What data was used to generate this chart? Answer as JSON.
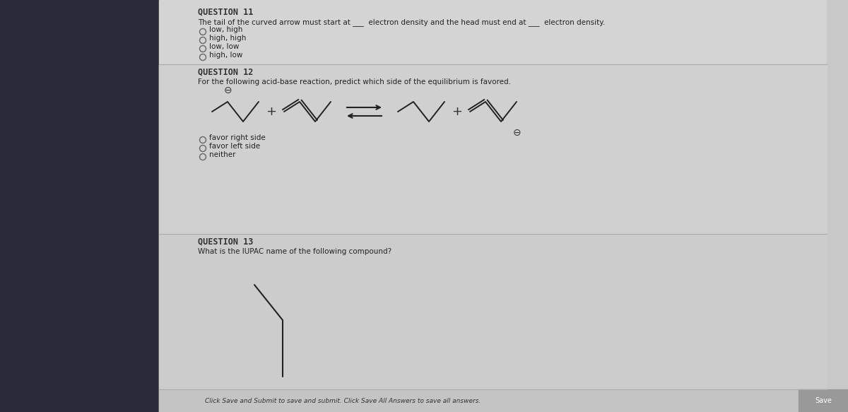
{
  "bg_color": "#e0e0e0",
  "left_panel_color": "#2a2a3a",
  "main_bg": "#d4d4d4",
  "q11_title": "QUESTION 11",
  "q11_text": "The tail of the curved arrow must start at ___  electron density and the head must end at ___  electron density.",
  "q11_options": [
    "low, high",
    "high, high",
    "low, low",
    "high, low"
  ],
  "q12_title": "QUESTION 12",
  "q12_text": "For the following acid-base reaction, predict which side of the equilibrium is favored.",
  "q12_options": [
    "favor right side",
    "favor left side",
    "neither"
  ],
  "q13_title": "QUESTION 13",
  "q13_text": "What is the IUPAC name of the following compound?",
  "footer_text": "Click Save and Submit to save and submit. Click Save All Answers to save all answers.",
  "save_text": "Save",
  "figsize": [
    12.0,
    5.83
  ],
  "dpi": 100
}
